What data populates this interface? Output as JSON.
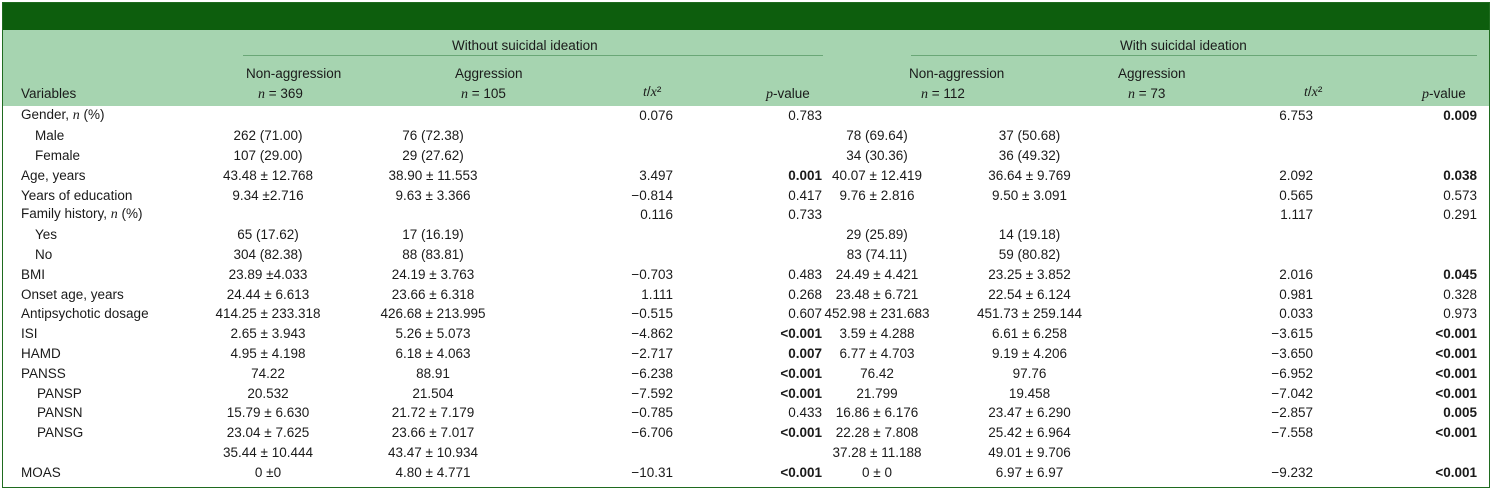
{
  "header": {
    "group1": "Without suicidal ideation",
    "group2": "With suicidal ideation",
    "variables": "Variables",
    "non_aggression": "Non-aggression",
    "aggression": "Aggression",
    "n_369": "n = 369",
    "n_105": "n = 105",
    "n_112": "n = 112",
    "n_73": "n = 73",
    "t_x2": "t/x²",
    "p_value": "p-value"
  },
  "rows": [
    {
      "label": "Gender, n (%)",
      "a": "",
      "b": "",
      "c": "0.076",
      "d": "0.783",
      "e": "",
      "f": "",
      "g": "6.753",
      "h": "0.009",
      "db": false,
      "hb": true,
      "indent": 0
    },
    {
      "label": "Male",
      "a": "262 (71.00)",
      "b": "76 (72.38)",
      "c": "",
      "d": "",
      "e": "78 (69.64)",
      "f": "37 (50.68)",
      "g": "",
      "h": "",
      "db": false,
      "hb": false,
      "indent": 1
    },
    {
      "label": "Female",
      "a": "107 (29.00)",
      "b": "29 (27.62)",
      "c": "",
      "d": "",
      "e": "34 (30.36)",
      "f": "36 (49.32)",
      "g": "",
      "h": "",
      "db": false,
      "hb": false,
      "indent": 1
    },
    {
      "label": "Age, years",
      "a": "43.48 ± 12.768",
      "b": "38.90 ± 11.553",
      "c": "3.497",
      "d": "0.001",
      "e": "40.07 ± 12.419",
      "f": "36.64 ± 9.769",
      "g": "2.092",
      "h": "0.038",
      "db": true,
      "hb": true,
      "indent": 0
    },
    {
      "label": "Years of education",
      "a": "9.34 ±2.716",
      "b": "9.63 ± 3.366",
      "c": "−0.814",
      "d": "0.417",
      "e": "9.76 ± 2.816",
      "f": "9.50 ± 3.091",
      "g": "0.565",
      "h": "0.573",
      "db": false,
      "hb": false,
      "indent": 0
    },
    {
      "label": "Family history, n (%)",
      "a": "",
      "b": "",
      "c": "0.116",
      "d": "0.733",
      "e": "",
      "f": "",
      "g": "1.117",
      "h": "0.291",
      "db": false,
      "hb": false,
      "indent": 0
    },
    {
      "label": "Yes",
      "a": "65 (17.62)",
      "b": "17 (16.19)",
      "c": "",
      "d": "",
      "e": "29 (25.89)",
      "f": "14 (19.18)",
      "g": "",
      "h": "",
      "db": false,
      "hb": false,
      "indent": 1
    },
    {
      "label": "No",
      "a": "304 (82.38)",
      "b": "88 (83.81)",
      "c": "",
      "d": "",
      "e": "83 (74.11)",
      "f": "59 (80.82)",
      "g": "",
      "h": "",
      "db": false,
      "hb": false,
      "indent": 1
    },
    {
      "label": "BMI",
      "a": "23.89 ±4.033",
      "b": "24.19 ± 3.763",
      "c": "−0.703",
      "d": "0.483",
      "e": "24.49 ± 4.421",
      "f": "23.25 ± 3.852",
      "g": "2.016",
      "h": "0.045",
      "db": false,
      "hb": true,
      "indent": 0
    },
    {
      "label": "Onset age, years",
      "a": "24.44 ± 6.613",
      "b": "23.66 ± 6.318",
      "c": "1.111",
      "d": "0.268",
      "e": "23.48 ± 6.721",
      "f": "22.54 ± 6.124",
      "g": "0.981",
      "h": "0.328",
      "db": false,
      "hb": false,
      "indent": 0
    },
    {
      "label": "Antipsychotic dosage",
      "a": "414.25 ± 233.318",
      "b": "426.68 ± 213.995",
      "c": "−0.515",
      "d": "0.607",
      "e": "452.98 ± 231.683",
      "f": "451.73 ± 259.144",
      "g": "0.033",
      "h": "0.973",
      "db": false,
      "hb": false,
      "indent": 0
    },
    {
      "label": "ISI",
      "a": "2.65 ± 3.943",
      "b": "5.26 ± 5.073",
      "c": "−4.862",
      "d": "<0.001",
      "e": "3.59 ± 4.288",
      "f": "6.61 ± 6.258",
      "g": "−3.615",
      "h": "<0.001",
      "db": true,
      "hb": true,
      "indent": 0
    },
    {
      "label": "HAMD",
      "a": "4.95 ± 4.198",
      "b": "6.18 ± 4.063",
      "c": "−2.717",
      "d": "0.007",
      "e": "6.77 ± 4.703",
      "f": "9.19 ± 4.206",
      "g": "−3.650",
      "h": "<0.001",
      "db": true,
      "hb": true,
      "indent": 0
    },
    {
      "label": "PANSS",
      "a": "74.22",
      "b": "88.91",
      "c": "−6.238",
      "d": "<0.001",
      "e": "76.42",
      "f": "97.76",
      "g": "−6.952",
      "h": "<0.001",
      "db": true,
      "hb": true,
      "indent": 0
    },
    {
      "label": "PANSP",
      "a": "20.532",
      "b": "21.504",
      "c": "−7.592",
      "d": "<0.001",
      "e": "21.799",
      "f": "19.458",
      "g": "−7.042",
      "h": "<0.001",
      "db": true,
      "hb": true,
      "indent": 2
    },
    {
      "label": "PANSN",
      "a": "15.79 ± 6.630",
      "b": "21.72 ± 7.179",
      "c": "−0.785",
      "d": "0.433",
      "e": "16.86 ± 6.176",
      "f": "23.47 ± 6.290",
      "g": "−2.857",
      "h": "0.005",
      "db": false,
      "hb": true,
      "indent": 2
    },
    {
      "label": "PANSG",
      "a": "23.04 ± 7.625",
      "b": "23.66 ± 7.017",
      "c": "−6.706",
      "d": "<0.001",
      "e": "22.28 ± 7.808",
      "f": "25.42 ± 6.964",
      "g": "−7.558",
      "h": "<0.001",
      "db": true,
      "hb": true,
      "indent": 2
    },
    {
      "label": "",
      "a": "35.44 ± 10.444",
      "b": "43.47 ± 10.934",
      "c": "",
      "d": "",
      "e": "37.28 ± 11.188",
      "f": "49.01 ± 9.706",
      "g": "",
      "h": "",
      "db": false,
      "hb": false,
      "indent": 0
    },
    {
      "label": "MOAS",
      "a": "0 ±0",
      "b": "4.80 ± 4.771",
      "c": "−10.31",
      "d": "<0.001",
      "e": "0 ± 0",
      "f": "6.97 ± 6.97",
      "g": "−9.232",
      "h": "<0.001",
      "db": true,
      "hb": true,
      "indent": 0
    }
  ]
}
